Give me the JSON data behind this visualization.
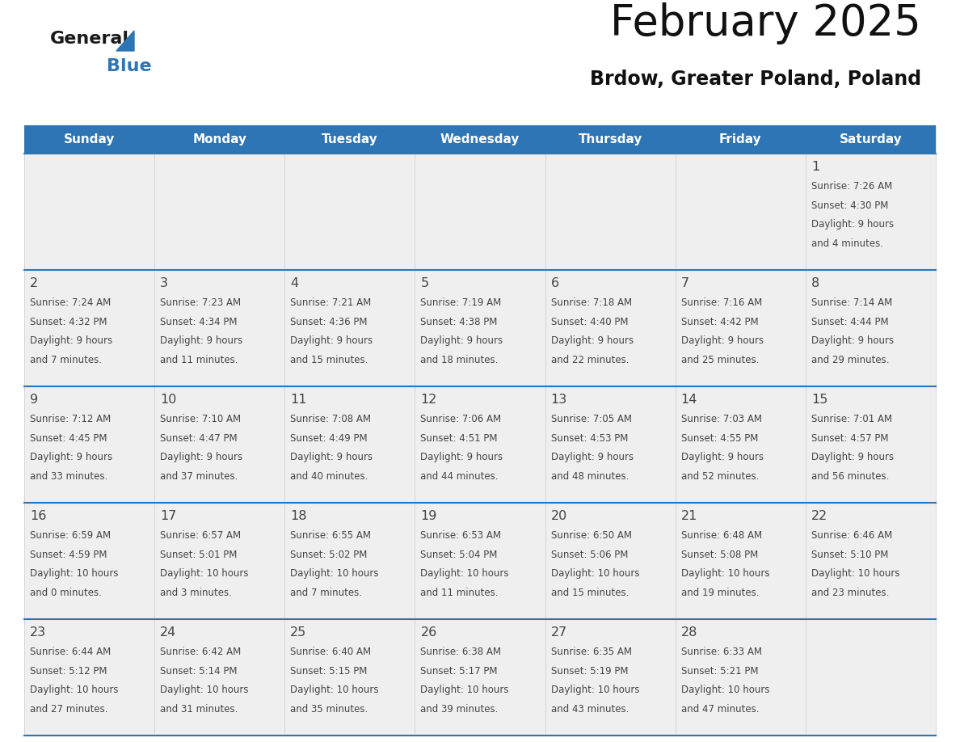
{
  "title": "February 2025",
  "subtitle": "Brdow, Greater Poland, Poland",
  "header_color": "#2E75B6",
  "header_text_color": "#FFFFFF",
  "days_of_week": [
    "Sunday",
    "Monday",
    "Tuesday",
    "Wednesday",
    "Thursday",
    "Friday",
    "Saturday"
  ],
  "bg_color": "#FFFFFF",
  "cell_bg": "#EFEFEF",
  "separator_color": "#2E75B6",
  "day_number_color": "#444444",
  "text_color": "#444444",
  "calendar": [
    [
      null,
      null,
      null,
      null,
      null,
      null,
      1
    ],
    [
      2,
      3,
      4,
      5,
      6,
      7,
      8
    ],
    [
      9,
      10,
      11,
      12,
      13,
      14,
      15
    ],
    [
      16,
      17,
      18,
      19,
      20,
      21,
      22
    ],
    [
      23,
      24,
      25,
      26,
      27,
      28,
      null
    ]
  ],
  "cell_data": {
    "1": {
      "sunrise": "7:26 AM",
      "sunset": "4:30 PM",
      "daylight": "9 hours",
      "daylight2": "and 4 minutes."
    },
    "2": {
      "sunrise": "7:24 AM",
      "sunset": "4:32 PM",
      "daylight": "9 hours",
      "daylight2": "and 7 minutes."
    },
    "3": {
      "sunrise": "7:23 AM",
      "sunset": "4:34 PM",
      "daylight": "9 hours",
      "daylight2": "and 11 minutes."
    },
    "4": {
      "sunrise": "7:21 AM",
      "sunset": "4:36 PM",
      "daylight": "9 hours",
      "daylight2": "and 15 minutes."
    },
    "5": {
      "sunrise": "7:19 AM",
      "sunset": "4:38 PM",
      "daylight": "9 hours",
      "daylight2": "and 18 minutes."
    },
    "6": {
      "sunrise": "7:18 AM",
      "sunset": "4:40 PM",
      "daylight": "9 hours",
      "daylight2": "and 22 minutes."
    },
    "7": {
      "sunrise": "7:16 AM",
      "sunset": "4:42 PM",
      "daylight": "9 hours",
      "daylight2": "and 25 minutes."
    },
    "8": {
      "sunrise": "7:14 AM",
      "sunset": "4:44 PM",
      "daylight": "9 hours",
      "daylight2": "and 29 minutes."
    },
    "9": {
      "sunrise": "7:12 AM",
      "sunset": "4:45 PM",
      "daylight": "9 hours",
      "daylight2": "and 33 minutes."
    },
    "10": {
      "sunrise": "7:10 AM",
      "sunset": "4:47 PM",
      "daylight": "9 hours",
      "daylight2": "and 37 minutes."
    },
    "11": {
      "sunrise": "7:08 AM",
      "sunset": "4:49 PM",
      "daylight": "9 hours",
      "daylight2": "and 40 minutes."
    },
    "12": {
      "sunrise": "7:06 AM",
      "sunset": "4:51 PM",
      "daylight": "9 hours",
      "daylight2": "and 44 minutes."
    },
    "13": {
      "sunrise": "7:05 AM",
      "sunset": "4:53 PM",
      "daylight": "9 hours",
      "daylight2": "and 48 minutes."
    },
    "14": {
      "sunrise": "7:03 AM",
      "sunset": "4:55 PM",
      "daylight": "9 hours",
      "daylight2": "and 52 minutes."
    },
    "15": {
      "sunrise": "7:01 AM",
      "sunset": "4:57 PM",
      "daylight": "9 hours",
      "daylight2": "and 56 minutes."
    },
    "16": {
      "sunrise": "6:59 AM",
      "sunset": "4:59 PM",
      "daylight": "10 hours",
      "daylight2": "and 0 minutes."
    },
    "17": {
      "sunrise": "6:57 AM",
      "sunset": "5:01 PM",
      "daylight": "10 hours",
      "daylight2": "and 3 minutes."
    },
    "18": {
      "sunrise": "6:55 AM",
      "sunset": "5:02 PM",
      "daylight": "10 hours",
      "daylight2": "and 7 minutes."
    },
    "19": {
      "sunrise": "6:53 AM",
      "sunset": "5:04 PM",
      "daylight": "10 hours",
      "daylight2": "and 11 minutes."
    },
    "20": {
      "sunrise": "6:50 AM",
      "sunset": "5:06 PM",
      "daylight": "10 hours",
      "daylight2": "and 15 minutes."
    },
    "21": {
      "sunrise": "6:48 AM",
      "sunset": "5:08 PM",
      "daylight": "10 hours",
      "daylight2": "and 19 minutes."
    },
    "22": {
      "sunrise": "6:46 AM",
      "sunset": "5:10 PM",
      "daylight": "10 hours",
      "daylight2": "and 23 minutes."
    },
    "23": {
      "sunrise": "6:44 AM",
      "sunset": "5:12 PM",
      "daylight": "10 hours",
      "daylight2": "and 27 minutes."
    },
    "24": {
      "sunrise": "6:42 AM",
      "sunset": "5:14 PM",
      "daylight": "10 hours",
      "daylight2": "and 31 minutes."
    },
    "25": {
      "sunrise": "6:40 AM",
      "sunset": "5:15 PM",
      "daylight": "10 hours",
      "daylight2": "and 35 minutes."
    },
    "26": {
      "sunrise": "6:38 AM",
      "sunset": "5:17 PM",
      "daylight": "10 hours",
      "daylight2": "and 39 minutes."
    },
    "27": {
      "sunrise": "6:35 AM",
      "sunset": "5:19 PM",
      "daylight": "10 hours",
      "daylight2": "and 43 minutes."
    },
    "28": {
      "sunrise": "6:33 AM",
      "sunset": "5:21 PM",
      "daylight": "10 hours",
      "daylight2": "and 47 minutes."
    }
  },
  "logo_general_color": "#1a1a1a",
  "logo_blue_color": "#2E75B6",
  "logo_triangle_color": "#2E75B6"
}
